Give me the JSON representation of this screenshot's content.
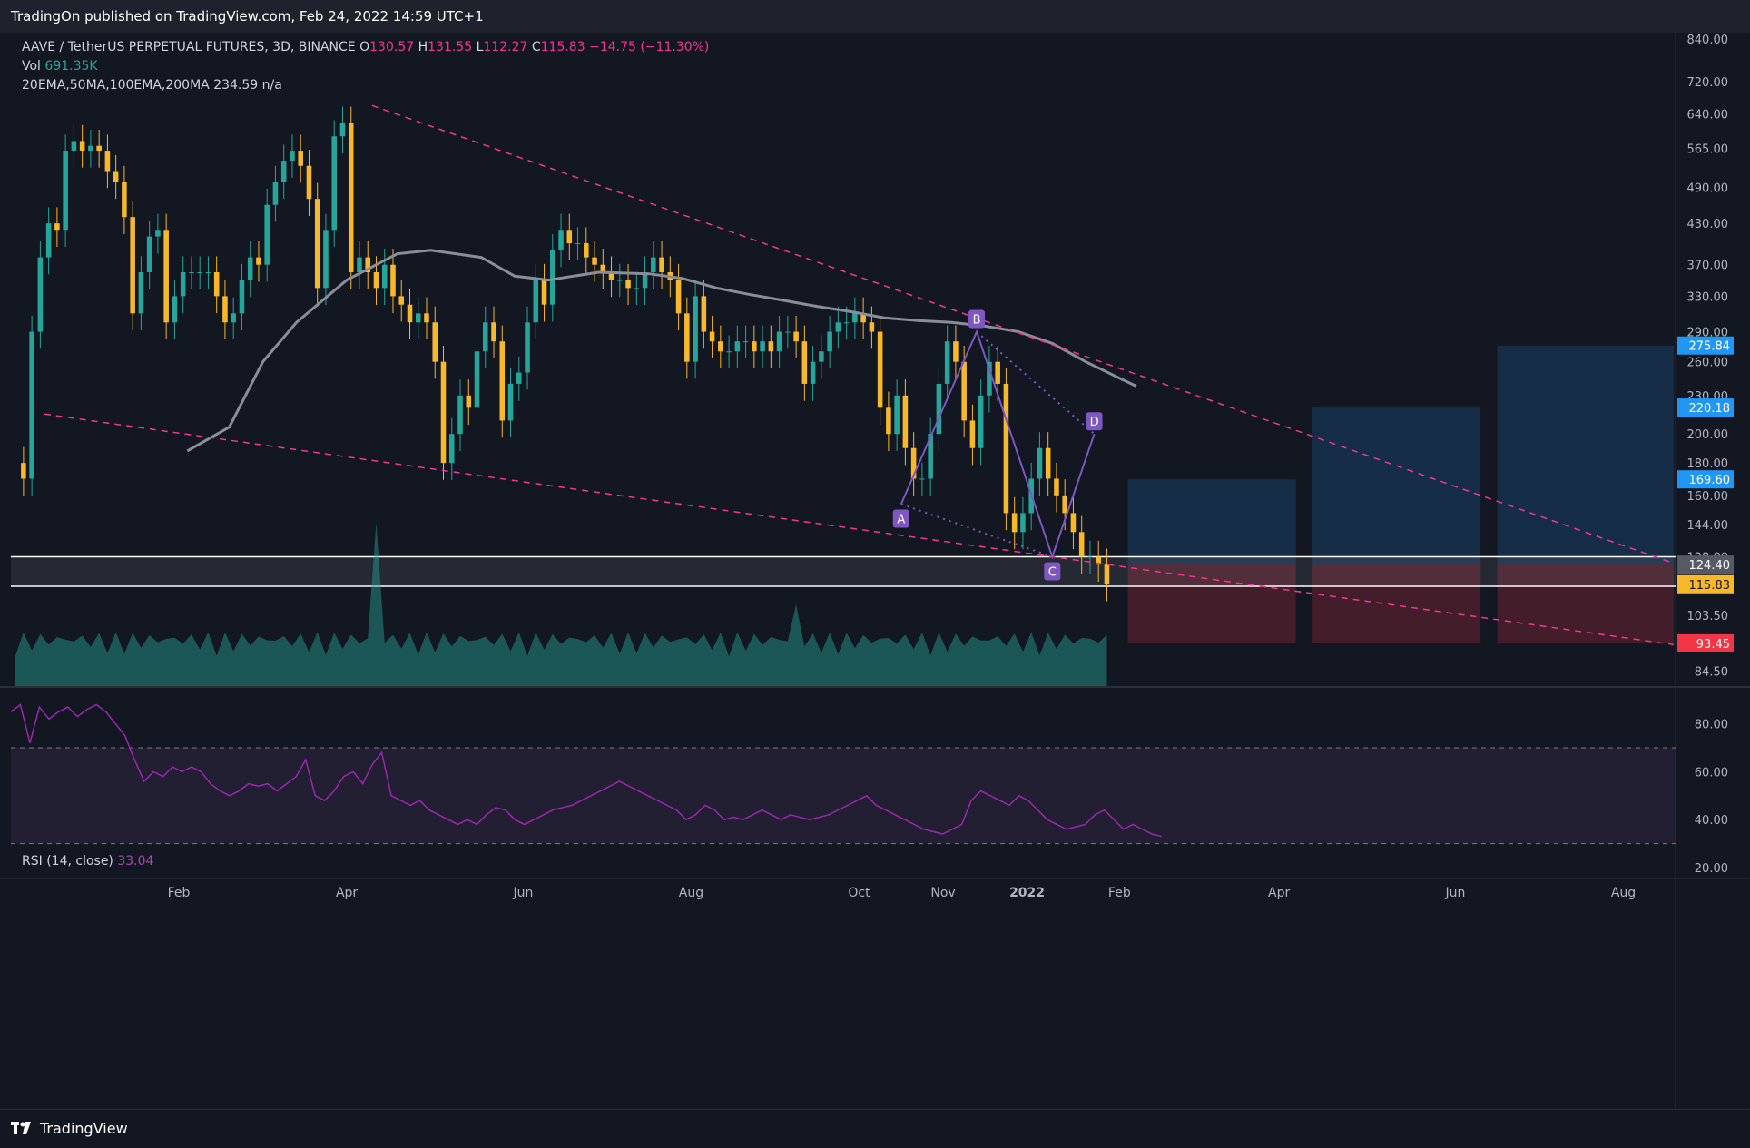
{
  "header": {
    "published": "TradingOn published on TradingView.com, Feb 24, 2022 14:59 UTC+1"
  },
  "legend": {
    "symbol": "AAVE / TetherUS PERPETUAL FUTURES, 3D, BINANCE",
    "o_label": "O",
    "o": "130.57",
    "h_label": "H",
    "h": "131.55",
    "l_label": "L",
    "l": "112.27",
    "c_label": "C",
    "c": "115.83",
    "change": "−14.75 (−11.30%)",
    "vol_label": "Vol",
    "vol": "691.35K",
    "ma_label": "20EMA,50MA,100EMA,200MA",
    "ma_value": "234.59",
    "ma_na": "n/a",
    "rsi_label": "RSI (14, close)",
    "rsi_value": "33.04"
  },
  "footer": {
    "brand": "TradingView"
  },
  "colors": {
    "up": "#26a69a",
    "down": "#f7b82c",
    "ma": "#8a8e99",
    "trend": "#f23692",
    "pattern": "#7e57c2",
    "rsi": "#9c27b0"
  },
  "chart_data": [
    {
      "type": "candlestick",
      "scale": "log",
      "ylim": [
        80,
        860
      ],
      "y_ticks": [
        840,
        720,
        640,
        565,
        490,
        430,
        370,
        330,
        290,
        260,
        230,
        200,
        180,
        160,
        144,
        128,
        115,
        103.5,
        84.5
      ],
      "x_ticks": [
        {
          "label": "Feb",
          "bar": 20
        },
        {
          "label": "Apr",
          "bar": 40
        },
        {
          "label": "Jun",
          "bar": 61
        },
        {
          "label": "Aug",
          "bar": 81
        },
        {
          "label": "Oct",
          "bar": 101
        },
        {
          "label": "Nov",
          "bar": 111
        },
        {
          "label": "2022",
          "bar": 121
        },
        {
          "label": "Feb",
          "bar": 132
        },
        {
          "label": "Apr",
          "bar": 151
        },
        {
          "label": "Jun",
          "bar": 172
        },
        {
          "label": "Aug",
          "bar": 192
        }
      ],
      "last_bar": 137,
      "price_labels": [
        {
          "value": 275.84,
          "text": "275.84",
          "color": "#2196f3"
        },
        {
          "value": 220.18,
          "text": "220.18",
          "color": "#2196f3"
        },
        {
          "value": 169.6,
          "text": "169.60",
          "color": "#2196f3"
        },
        {
          "value": 124.4,
          "text": "124.40",
          "color": "#555a66"
        },
        {
          "value": 115.83,
          "text": "115.83",
          "color": "#f7b82c"
        },
        {
          "value": 93.45,
          "text": "93.45",
          "color": "#f23645"
        }
      ],
      "close_series": [
        180,
        170,
        290,
        380,
        430,
        420,
        560,
        580,
        560,
        570,
        560,
        520,
        500,
        440,
        310,
        360,
        410,
        420,
        300,
        330,
        360,
        360,
        360,
        360,
        330,
        300,
        310,
        350,
        380,
        370,
        460,
        500,
        540,
        560,
        530,
        470,
        340,
        420,
        590,
        620,
        360,
        380,
        360,
        340,
        370,
        330,
        320,
        300,
        310,
        300,
        260,
        180,
        200,
        230,
        220,
        270,
        300,
        280,
        210,
        240,
        250,
        300,
        350,
        320,
        390,
        420,
        400,
        400,
        380,
        370,
        360,
        350,
        350,
        340,
        340,
        360,
        380,
        360,
        350,
        310,
        260,
        330,
        290,
        280,
        270,
        270,
        280,
        280,
        270,
        280,
        270,
        290,
        290,
        280,
        240,
        260,
        270,
        290,
        300,
        300,
        310,
        300,
        290,
        220,
        200,
        230,
        190,
        170,
        170,
        200,
        240,
        280,
        260,
        210,
        190,
        230,
        260,
        240,
        150,
        140,
        150,
        170,
        190,
        170,
        160,
        150,
        140,
        128,
        128,
        124.4,
        115.83
      ],
      "ma_points": [
        [
          21,
          188
        ],
        [
          26,
          205
        ],
        [
          30,
          260
        ],
        [
          34,
          300
        ],
        [
          40,
          350
        ],
        [
          46,
          385
        ],
        [
          50,
          390
        ],
        [
          56,
          380
        ],
        [
          60,
          355
        ],
        [
          64,
          350
        ],
        [
          70,
          360
        ],
        [
          76,
          358
        ],
        [
          80,
          352
        ],
        [
          84,
          340
        ],
        [
          88,
          332
        ],
        [
          92,
          325
        ],
        [
          96,
          318
        ],
        [
          100,
          312
        ],
        [
          104,
          305
        ],
        [
          108,
          302
        ],
        [
          112,
          300
        ],
        [
          116,
          296
        ],
        [
          120,
          290
        ],
        [
          124,
          278
        ],
        [
          128,
          260
        ],
        [
          132,
          245
        ],
        [
          134,
          238
        ]
      ],
      "volume_spikes": [
        {
          "bar": 43,
          "ratio": 1.0
        },
        {
          "bar": 93,
          "ratio": 0.5
        }
      ],
      "trendlines": [
        {
          "from": [
            43,
            660
          ],
          "to": [
            198,
            125
          ]
        },
        {
          "from": [
            4,
            215
          ],
          "to": [
            198,
            93
          ]
        }
      ],
      "zone": {
        "high": 128,
        "low": 115
      },
      "pattern": {
        "labels": [
          "A",
          "B",
          "C",
          "D"
        ],
        "points": [
          {
            "bar": 106,
            "price": 155
          },
          {
            "bar": 115,
            "price": 290
          },
          {
            "bar": 124,
            "price": 128
          },
          {
            "bar": 129,
            "price": 200
          }
        ]
      },
      "positions": [
        {
          "from_bar": 133,
          "to_bar": 153,
          "entry": 124.4,
          "target": 169.6,
          "stop": 93.45
        },
        {
          "from_bar": 155,
          "to_bar": 175,
          "entry": 124.4,
          "target": 220.18,
          "stop": 93.45
        },
        {
          "from_bar": 177,
          "to_bar": 198,
          "entry": 124.4,
          "target": 275.84,
          "stop": 93.45
        }
      ]
    },
    {
      "type": "line",
      "name": "RSI (14, close)",
      "ylim": [
        20,
        95
      ],
      "y_ticks": [
        80,
        60,
        40,
        20
      ],
      "bands": [
        70,
        30
      ],
      "values": [
        85,
        88,
        72,
        87,
        82,
        85,
        87,
        83,
        86,
        88,
        85,
        80,
        75,
        65,
        56,
        60,
        58,
        62,
        60,
        62,
        60,
        55,
        52,
        50,
        52,
        55,
        54,
        55,
        52,
        55,
        58,
        65,
        50,
        48,
        52,
        58,
        60,
        55,
        63,
        68,
        50,
        48,
        46,
        48,
        44,
        42,
        40,
        38,
        40,
        38,
        42,
        45,
        44,
        40,
        38,
        40,
        42,
        44,
        45,
        46,
        48,
        50,
        52,
        54,
        56,
        54,
        52,
        50,
        48,
        46,
        44,
        40,
        42,
        46,
        44,
        40,
        41,
        40,
        42,
        44,
        42,
        40,
        42,
        41,
        40,
        41,
        42,
        44,
        46,
        48,
        50,
        46,
        44,
        42,
        40,
        38,
        36,
        35,
        34,
        36,
        38,
        48,
        52,
        50,
        48,
        46,
        50,
        48,
        44,
        40,
        38,
        36,
        37,
        38,
        42,
        44,
        40,
        36,
        38,
        36,
        34,
        33.04
      ]
    }
  ]
}
